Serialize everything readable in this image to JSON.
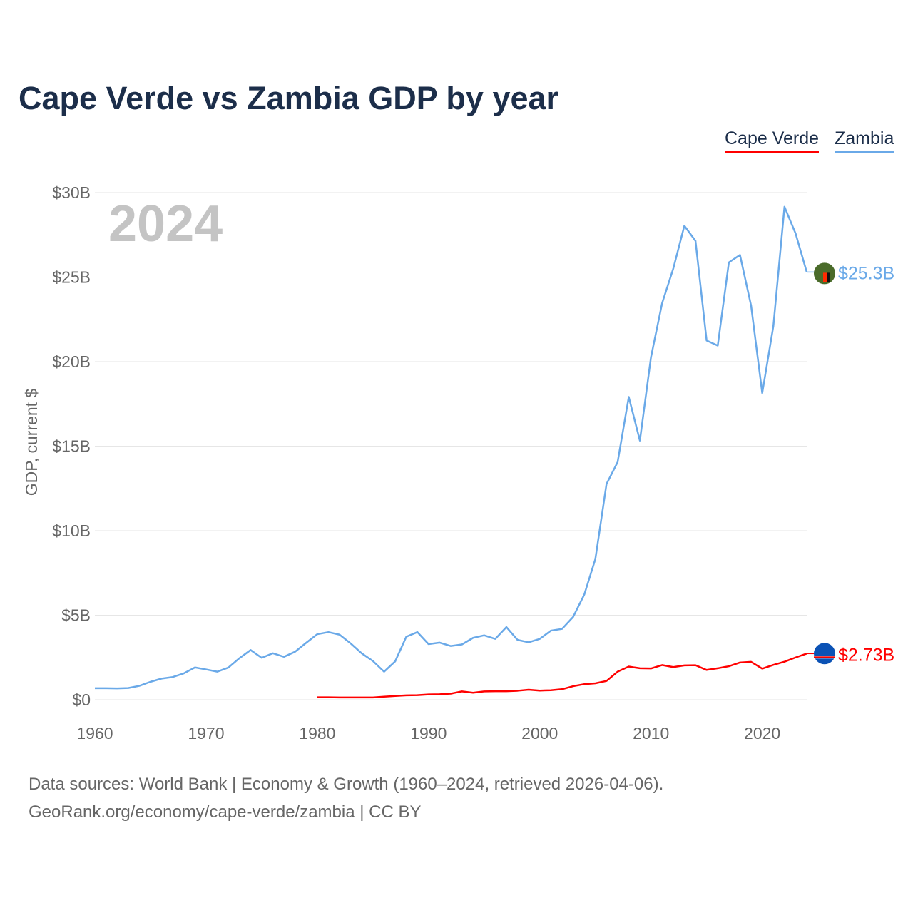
{
  "chart_data": {
    "type": "line",
    "title": "Cape Verde vs Zambia GDP by year",
    "ylabel": "GDP, current $",
    "xlabel": "",
    "year_watermark": "2024",
    "xlim": [
      1960,
      2024
    ],
    "ylim": [
      0,
      30
    ],
    "grid": true,
    "legend_placement": "top-right",
    "x_ticks": [
      "1960",
      "1970",
      "1980",
      "1990",
      "2000",
      "2010",
      "2020"
    ],
    "y_ticks": [
      {
        "v": 0,
        "label": "$0"
      },
      {
        "v": 5,
        "label": "$5B"
      },
      {
        "v": 10,
        "label": "$10B"
      },
      {
        "v": 15,
        "label": "$15B"
      },
      {
        "v": 20,
        "label": "$20B"
      },
      {
        "v": 25,
        "label": "$25B"
      },
      {
        "v": 30,
        "label": "$30B"
      }
    ],
    "series": [
      {
        "name": "Cape Verde",
        "color": "#ff0000",
        "start_year": 1980,
        "end_label": "$2.73B",
        "flag": "cape-verde-flag",
        "values": [
          0.14,
          0.14,
          0.13,
          0.13,
          0.13,
          0.13,
          0.18,
          0.22,
          0.26,
          0.27,
          0.31,
          0.32,
          0.36,
          0.49,
          0.41,
          0.49,
          0.5,
          0.5,
          0.53,
          0.59,
          0.54,
          0.56,
          0.62,
          0.8,
          0.92,
          0.97,
          1.11,
          1.66,
          1.96,
          1.86,
          1.85,
          2.05,
          1.93,
          2.03,
          2.04,
          1.76,
          1.86,
          1.98,
          2.2,
          2.24,
          1.84,
          2.06,
          2.25,
          2.5,
          2.73
        ]
      },
      {
        "name": "Zambia",
        "color": "#6aa9e8",
        "start_year": 1960,
        "end_label": "$25.3B",
        "flag": "zambia-flag",
        "values": [
          0.68,
          0.68,
          0.67,
          0.69,
          0.82,
          1.06,
          1.25,
          1.34,
          1.56,
          1.91,
          1.79,
          1.66,
          1.9,
          2.46,
          2.94,
          2.48,
          2.75,
          2.54,
          2.84,
          3.37,
          3.88,
          4.0,
          3.85,
          3.33,
          2.74,
          2.29,
          1.66,
          2.27,
          3.73,
          4.0,
          3.29,
          3.38,
          3.18,
          3.27,
          3.66,
          3.81,
          3.6,
          4.3,
          3.54,
          3.4,
          3.6,
          4.09,
          4.19,
          4.9,
          6.22,
          8.33,
          12.76,
          14.06,
          17.91,
          15.33,
          20.27,
          23.46,
          25.5,
          28.04,
          27.14,
          21.25,
          20.95,
          25.87,
          26.31,
          23.31,
          18.14,
          22.1,
          29.16,
          27.58,
          25.3
        ]
      }
    ]
  },
  "footer": {
    "line1": "Data sources: World Bank | Economy & Growth (1960–2024, retrieved 2026-04-06).",
    "line2": "GeoRank.org/economy/cape-verde/zambia | CC BY"
  }
}
